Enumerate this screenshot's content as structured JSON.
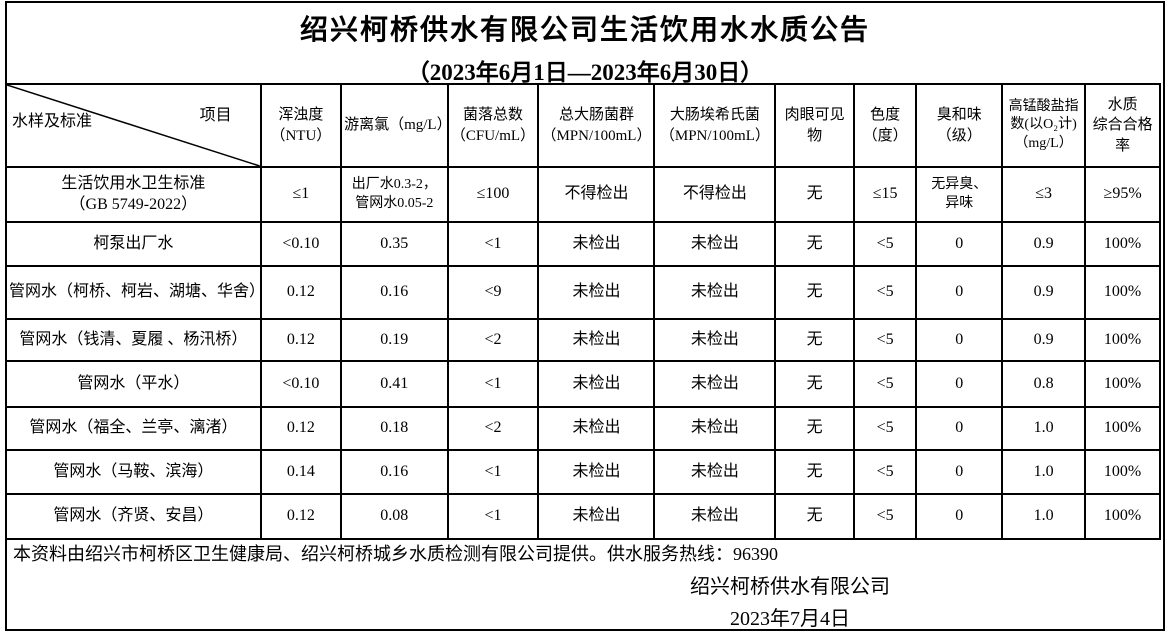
{
  "title": "绍兴柯桥供水有限公司生活饮用水水质公告",
  "subtitle": "（2023年6月1日—2023年6月30日）",
  "table": {
    "corner": {
      "top_right": "项目",
      "bottom_left": "水样及标准"
    },
    "columns": [
      "浑浊度\n（NTU）",
      "游离氯（mg/L）",
      "菌落总数\n（CFU/mL）",
      "总大肠菌群\n（MPN/100mL）",
      "大肠埃希氏菌\n（MPN/100mL）",
      "肉眼可见物",
      "色度\n（度）",
      "臭和味\n（级）",
      "高锰酸盐指\n数(以O₂计)\n（mg/L）",
      "水质\n综合合格率"
    ],
    "rows": [
      {
        "name": "生活饮用水卫生标准\n（GB 5749-2022）",
        "values": [
          "≤1",
          "出厂水0.3-2，\n管网水0.05-2",
          "≤100",
          "不得检出",
          "不得检出",
          "无",
          "≤15",
          "无异臭、\n异味",
          "≤3",
          "≥95%"
        ]
      },
      {
        "name": "柯泵出厂水",
        "values": [
          "<0.10",
          "0.35",
          "<1",
          "未检出",
          "未检出",
          "无",
          "<5",
          "0",
          "0.9",
          "100%"
        ]
      },
      {
        "name": "管网水（柯桥、柯岩、湖塘、华舍）",
        "values": [
          "0.12",
          "0.16",
          "<9",
          "未检出",
          "未检出",
          "无",
          "<5",
          "0",
          "0.9",
          "100%"
        ]
      },
      {
        "name": "管网水（钱清、夏履 、杨汛桥）",
        "values": [
          "0.12",
          "0.19",
          "<2",
          "未检出",
          "未检出",
          "无",
          "<5",
          "0",
          "0.9",
          "100%"
        ]
      },
      {
        "name": "管网水（平水）",
        "values": [
          "<0.10",
          "0.41",
          "<1",
          "未检出",
          "未检出",
          "无",
          "<5",
          "0",
          "0.8",
          "100%"
        ]
      },
      {
        "name": "管网水（福全、兰亭、漓渚）",
        "values": [
          "0.12",
          "0.18",
          "<2",
          "未检出",
          "未检出",
          "无",
          "<5",
          "0",
          "1.0",
          "100%"
        ]
      },
      {
        "name": "管网水（马鞍、滨海）",
        "values": [
          "0.14",
          "0.16",
          "<1",
          "未检出",
          "未检出",
          "无",
          "<5",
          "0",
          "1.0",
          "100%"
        ]
      },
      {
        "name": "管网水（齐贤、安昌）",
        "values": [
          "0.12",
          "0.08",
          "<1",
          "未检出",
          "未检出",
          "无",
          "<5",
          "0",
          "1.0",
          "100%"
        ]
      }
    ]
  },
  "footer": {
    "note": "本资料由绍兴市柯桥区卫生健康局、绍兴柯桥城乡水质检测有限公司提供。供水服务热线：96390",
    "company": "绍兴柯桥供水有限公司",
    "date": "2023年7月4日"
  }
}
